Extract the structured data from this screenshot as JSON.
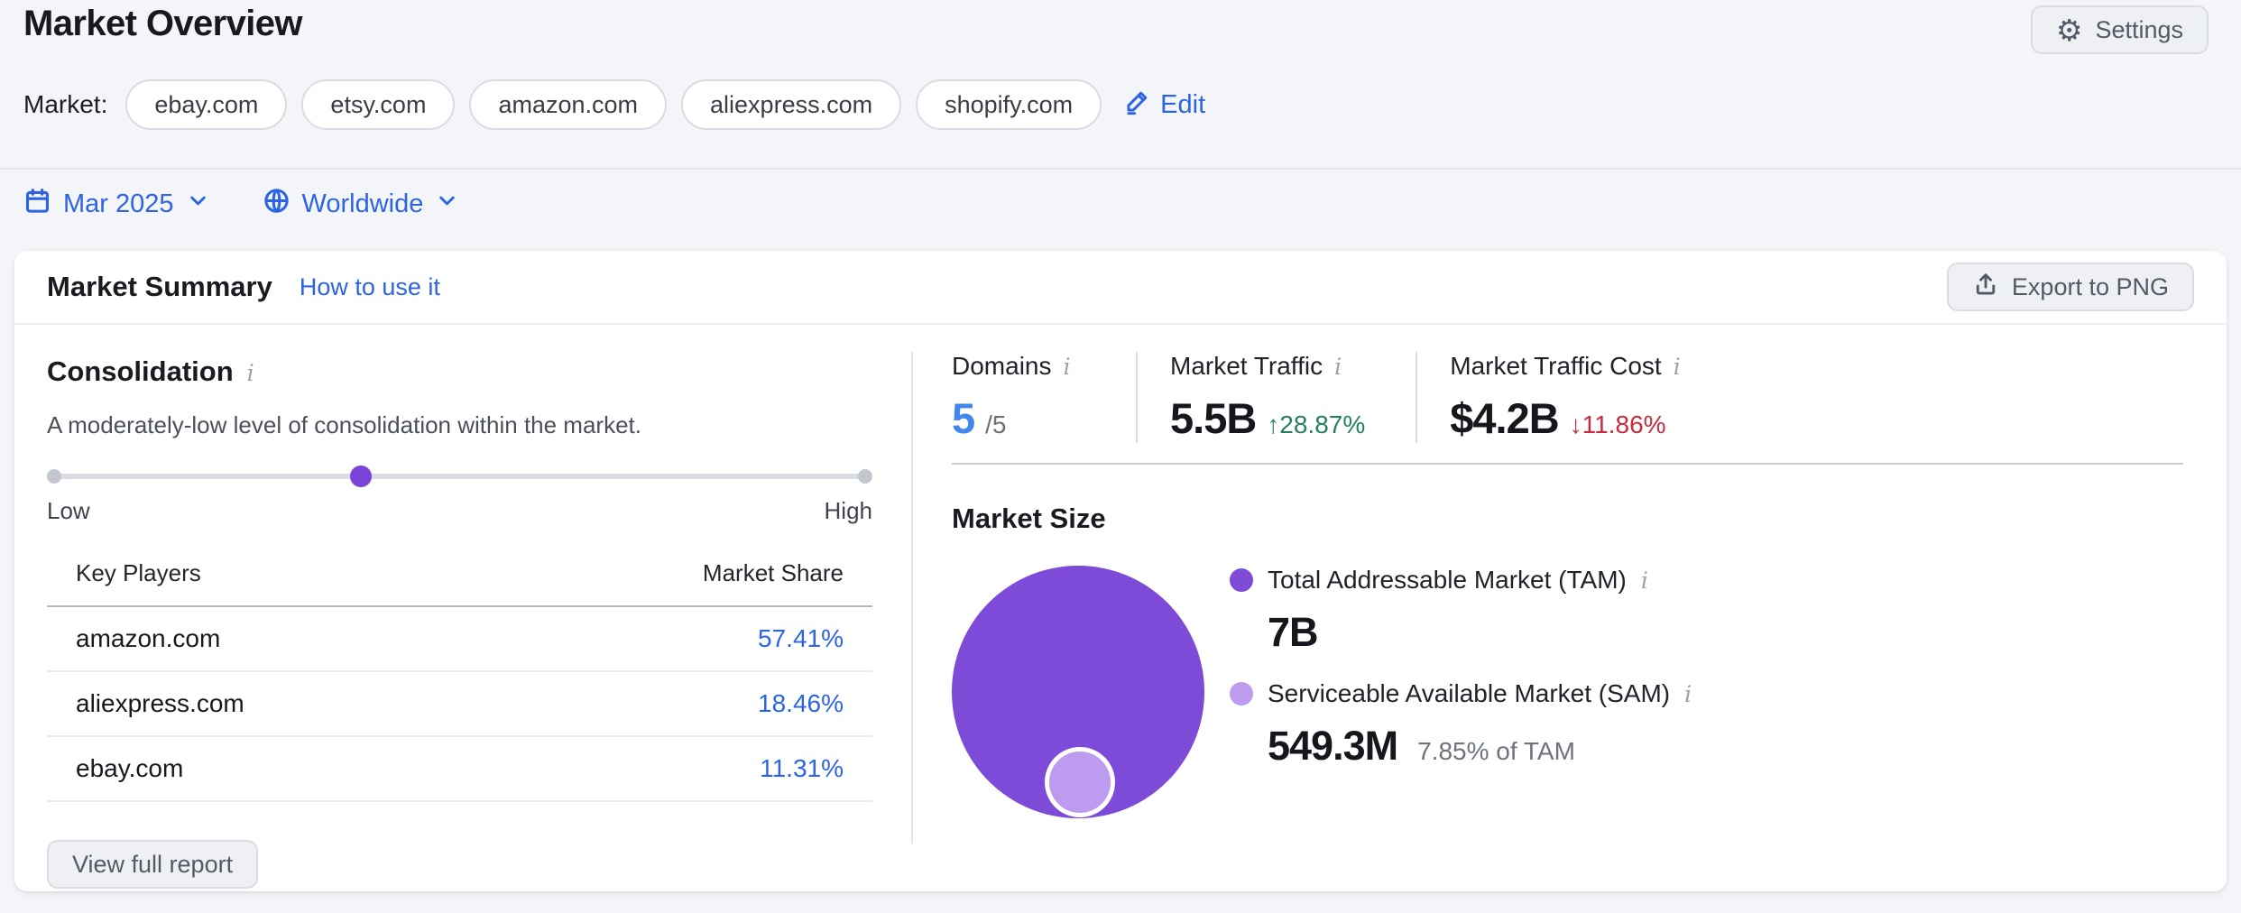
{
  "icons": {
    "gear": "⚙",
    "info": "i"
  },
  "colors": {
    "accent_blue": "#2C64E4",
    "stat_blue": "#4287EC",
    "positive_green": "#267F5F",
    "negative_red": "#C9293E",
    "tam_purple": "#7D4BD7",
    "sam_purple": "#BD9BEE"
  },
  "page": {
    "title": "Market Overview",
    "settings_label": "Settings",
    "market_label": "Market:",
    "market_domains": [
      "ebay.com",
      "etsy.com",
      "amazon.com",
      "aliexpress.com",
      "shopify.com"
    ],
    "edit_label": "Edit",
    "date_filter": "Mar 2025",
    "region_filter": "Worldwide"
  },
  "card": {
    "title": "Market Summary",
    "help_link": "How to use it",
    "export_label": "Export to PNG",
    "consolidation": {
      "title": "Consolidation",
      "description": "A moderately-low level of consolidation within the market.",
      "slider_low": "Low",
      "slider_high": "High",
      "slider_value_pct": 38
    },
    "key_players": {
      "col_player": "Key Players",
      "col_share": "Market Share",
      "rows": [
        {
          "domain": "amazon.com",
          "share": "57.41%"
        },
        {
          "domain": "aliexpress.com",
          "share": "18.46%"
        },
        {
          "domain": "ebay.com",
          "share": "11.31%"
        }
      ],
      "view_report_label": "View full report"
    },
    "stats": [
      {
        "label": "Domains",
        "value": "5",
        "suffix": "/5"
      },
      {
        "label": "Market Traffic",
        "value": "5.5B",
        "change": "↑28.87%",
        "trend": "up"
      },
      {
        "label": "Market Traffic Cost",
        "value": "$4.2B",
        "change": "↓11.86%",
        "trend": "down"
      }
    ],
    "market_size": {
      "title": "Market Size",
      "tam_label": "Total Addressable Market (TAM)",
      "tam_value": "7B",
      "sam_label": "Serviceable Available Market (SAM)",
      "sam_value": "549.3M",
      "sam_note": "7.85% of TAM"
    }
  }
}
